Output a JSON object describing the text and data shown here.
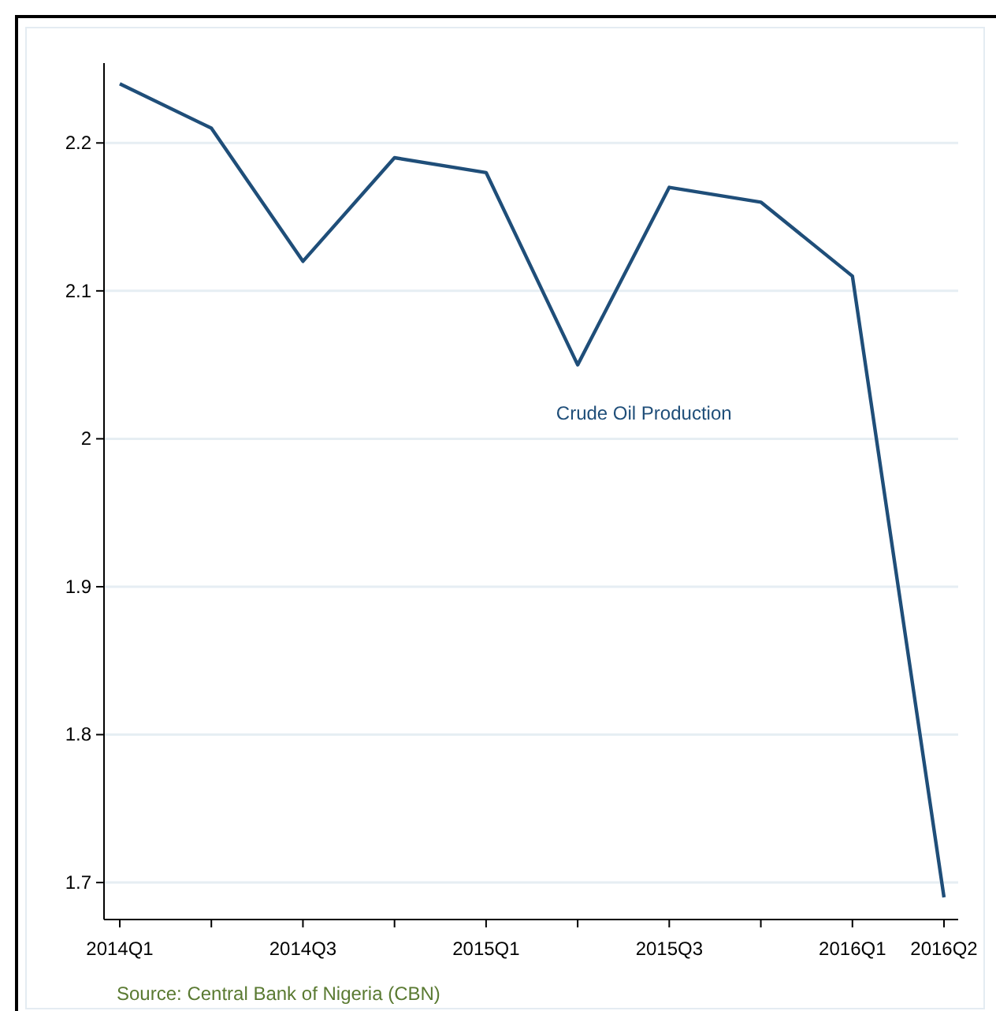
{
  "chart_data": {
    "type": "line",
    "categories": [
      "2014Q1",
      null,
      "2014Q3",
      null,
      "2015Q1",
      null,
      "2015Q3",
      null,
      "2016Q1",
      "2016Q2"
    ],
    "series": [
      {
        "name": "Crude Oil Production",
        "color": "#1f4e79",
        "values": [
          2.24,
          2.21,
          2.12,
          2.19,
          2.18,
          2.05,
          2.17,
          2.16,
          2.11,
          1.69
        ]
      }
    ],
    "ylim": [
      1.675,
      2.254
    ],
    "yticks": [
      {
        "value": 1.7,
        "label": "1.7"
      },
      {
        "value": 1.8,
        "label": "1.8"
      },
      {
        "value": 1.9,
        "label": "1.9"
      },
      {
        "value": 2,
        "label": "2"
      },
      {
        "value": 2.1,
        "label": "2.1"
      },
      {
        "value": 2.2,
        "label": "2.2"
      }
    ],
    "grid": "y",
    "marker": "none",
    "line_style": "solid",
    "legend": false,
    "annotations": [
      "Source: Central Bank of Nigeria (CBN)"
    ]
  }
}
